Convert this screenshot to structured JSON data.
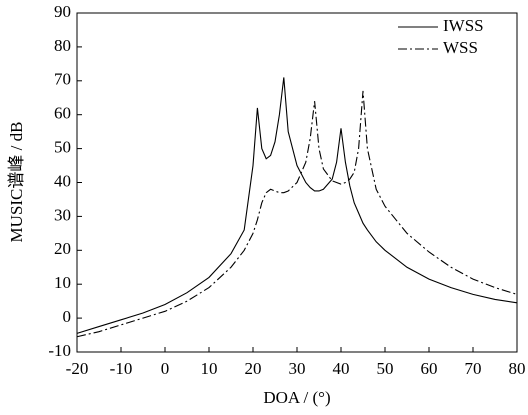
{
  "chart_data": {
    "type": "line",
    "x_label": "DOA / (°)",
    "y_label": "MUSIC谱峰 / dB",
    "x": [
      -20,
      -15,
      -10,
      -5,
      0,
      5,
      10,
      15,
      18,
      20,
      21,
      22,
      23,
      24,
      25,
      26,
      27,
      28,
      30,
      32,
      33,
      34,
      35,
      36,
      38,
      39,
      40,
      41,
      42,
      43,
      44,
      45,
      46,
      48,
      50,
      55,
      60,
      65,
      70,
      75,
      80
    ],
    "series": [
      {
        "name": "IWSS",
        "color": "#000000",
        "style": "solid",
        "values": [
          -4.5,
          -2.5,
          -0.5,
          1.5,
          4,
          7.5,
          12,
          19,
          26,
          45,
          62,
          50,
          47,
          48,
          52,
          60,
          71,
          55,
          45,
          40,
          38.5,
          37.5,
          37.5,
          38,
          41,
          46,
          56,
          46,
          39,
          34,
          31,
          28,
          26,
          22.5,
          20,
          15,
          11.5,
          9,
          7,
          5.5,
          4.5
        ]
      },
      {
        "name": "WSS",
        "color": "#000000",
        "style": "dashdot",
        "values": [
          -5.5,
          -4,
          -2,
          0,
          2,
          5,
          9,
          15,
          20,
          25,
          29,
          34,
          37,
          38,
          37.5,
          37,
          37,
          37.5,
          40,
          46,
          53,
          64,
          50,
          44,
          40.5,
          40,
          39.5,
          40,
          41,
          43,
          50,
          67,
          50,
          38,
          33,
          25,
          19.5,
          15,
          11.5,
          9,
          7
        ]
      }
    ],
    "xlim": [
      -20,
      80
    ],
    "xticks": [
      -20,
      -10,
      0,
      10,
      20,
      30,
      40,
      50,
      60,
      70,
      80
    ],
    "ylim": [
      -10,
      90
    ],
    "yticks": [
      -10,
      0,
      10,
      20,
      30,
      40,
      50,
      60,
      70,
      80,
      90
    ],
    "legend": "upper right",
    "grid": false
  }
}
